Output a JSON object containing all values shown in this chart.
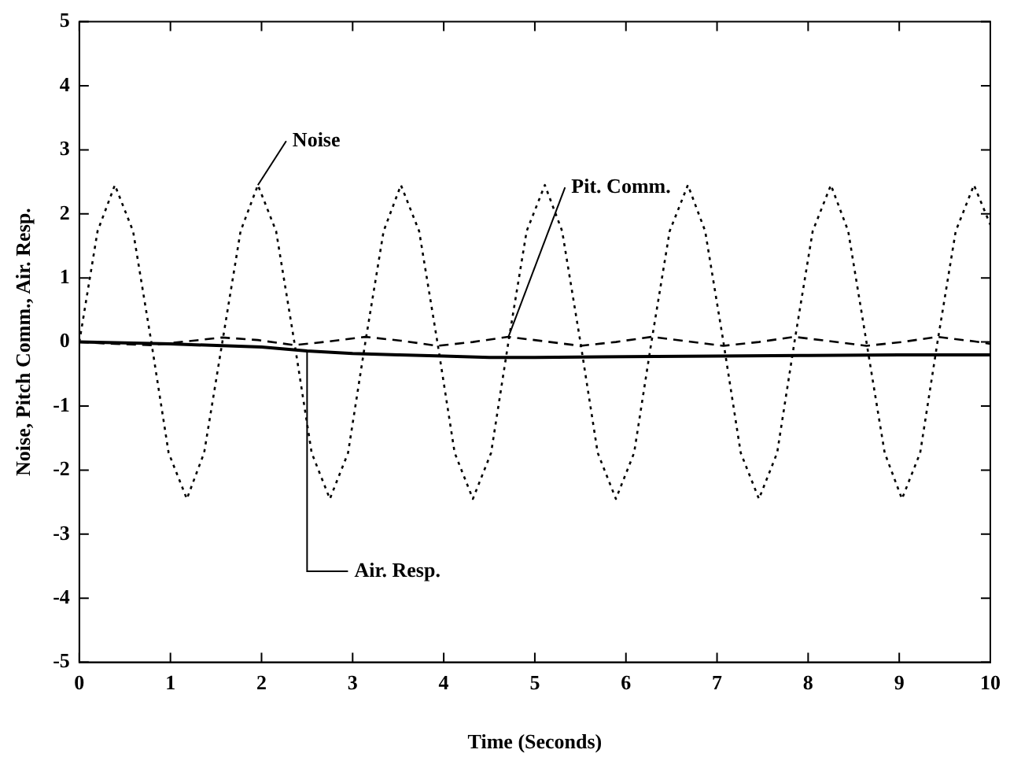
{
  "chart_data": {
    "type": "line",
    "xlabel": "Time (Seconds)",
    "ylabel": "Noise, Pitch Comm., Air. Resp.",
    "xlim": [
      0,
      10
    ],
    "xticks": [
      0,
      1,
      2,
      3,
      4,
      5,
      6,
      7,
      8,
      9,
      10
    ],
    "ylim": [
      -5,
      5
    ],
    "yticks": [
      -5,
      -4,
      -3,
      -2,
      -1,
      0,
      1,
      2,
      3,
      4,
      5
    ],
    "grid": false,
    "legend": false,
    "marker": "none",
    "series": [
      {
        "name": "Noise",
        "color": "#000000",
        "line_style": "dotted",
        "x": [
          0,
          0.2,
          0.39,
          0.59,
          0.79,
          0.98,
          1.18,
          1.37,
          1.57,
          1.77,
          1.96,
          2.16,
          2.36,
          2.55,
          2.75,
          2.95,
          3.14,
          3.34,
          3.53,
          3.73,
          3.93,
          4.12,
          4.32,
          4.52,
          4.71,
          4.91,
          5.11,
          5.3,
          5.5,
          5.69,
          5.89,
          6.09,
          6.28,
          6.48,
          6.68,
          6.87,
          7.07,
          7.26,
          7.46,
          7.66,
          7.85,
          8.05,
          8.25,
          8.44,
          8.64,
          8.84,
          9.03,
          9.23,
          9.42,
          9.62,
          9.82,
          10
        ],
        "values": [
          0,
          1.73,
          2.45,
          1.73,
          0,
          -1.73,
          -2.45,
          -1.73,
          0,
          1.73,
          2.45,
          1.73,
          0,
          -1.73,
          -2.45,
          -1.73,
          0,
          1.73,
          2.45,
          1.73,
          0,
          -1.73,
          -2.45,
          -1.73,
          0,
          1.73,
          2.45,
          1.73,
          0,
          -1.73,
          -2.45,
          -1.73,
          0,
          1.73,
          2.45,
          1.73,
          0,
          -1.73,
          -2.45,
          -1.73,
          0,
          1.73,
          2.45,
          1.73,
          0,
          -1.73,
          -2.45,
          -1.73,
          0,
          1.73,
          2.45,
          1.83
        ]
      },
      {
        "name": "Pit. Comm.",
        "color": "#000000",
        "line_style": "dashed",
        "x": [
          0,
          0.39,
          0.79,
          1.18,
          1.57,
          1.96,
          2.36,
          2.75,
          3.14,
          3.53,
          3.93,
          4.32,
          4.71,
          5.11,
          5.5,
          5.89,
          6.28,
          6.68,
          7.07,
          7.46,
          7.85,
          8.25,
          8.64,
          9.03,
          9.42,
          9.82,
          10
        ],
        "values": [
          0,
          -0.03,
          -0.05,
          0.01,
          0.07,
          0.03,
          -0.05,
          0.01,
          0.08,
          0.02,
          -0.06,
          0,
          0.08,
          0.01,
          -0.06,
          0,
          0.08,
          0.01,
          -0.06,
          0,
          0.08,
          0.01,
          -0.06,
          0,
          0.08,
          0.01,
          -0.03
        ]
      },
      {
        "name": "Air. Resp.",
        "color": "#000000",
        "line_style": "solid",
        "x": [
          0,
          1,
          2,
          2.5,
          3,
          3.5,
          4,
          4.5,
          5,
          6,
          7,
          8,
          9,
          10
        ],
        "values": [
          0,
          -0.03,
          -0.08,
          -0.14,
          -0.18,
          -0.2,
          -0.22,
          -0.24,
          -0.24,
          -0.23,
          -0.22,
          -0.21,
          -0.2,
          -0.2
        ]
      }
    ]
  }
}
